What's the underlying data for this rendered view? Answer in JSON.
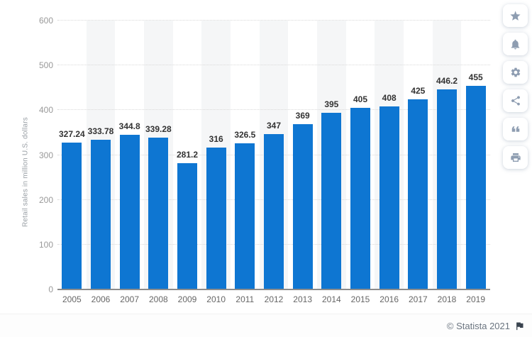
{
  "chart_data": {
    "type": "bar",
    "title": "",
    "categories": [
      "2005",
      "2006",
      "2007",
      "2008",
      "2009",
      "2010",
      "2011",
      "2012",
      "2013",
      "2014",
      "2015",
      "2016",
      "2017",
      "2018",
      "2019"
    ],
    "values": [
      327.24,
      333.78,
      344.8,
      339.28,
      281.2,
      316,
      326.5,
      347,
      369,
      395,
      405,
      408,
      425,
      446.2,
      455
    ],
    "xlabel": "",
    "ylabel": "Retail sales in million U.S. dollars",
    "ylim": [
      0,
      600
    ],
    "yticks": [
      0,
      100,
      200,
      300,
      400,
      500,
      600
    ],
    "grid": "horizontal-dotted",
    "legend": "none",
    "colors": {
      "bar": "#0e76d2",
      "stripe": "#f5f6f7",
      "gridline": "#d9d9d9",
      "axis_line": "#8c8c8c",
      "value_label": "#333333",
      "tick_label": "#999999",
      "x_label": "#666666",
      "sidebar_icon": "#8e9db1",
      "footer_text": "#6b7580",
      "flag": "#39434e"
    }
  },
  "sidebar": {
    "buttons": [
      {
        "id": "favorite",
        "icon": "star-icon"
      },
      {
        "id": "alerts",
        "icon": "bell-icon"
      },
      {
        "id": "settings",
        "icon": "gear-icon"
      },
      {
        "id": "share",
        "icon": "share-icon"
      },
      {
        "id": "cite",
        "icon": "quote-icon"
      },
      {
        "id": "print",
        "icon": "printer-icon"
      }
    ]
  },
  "footer": {
    "copyright": "© Statista 2021",
    "flag_icon": "flag-icon"
  }
}
